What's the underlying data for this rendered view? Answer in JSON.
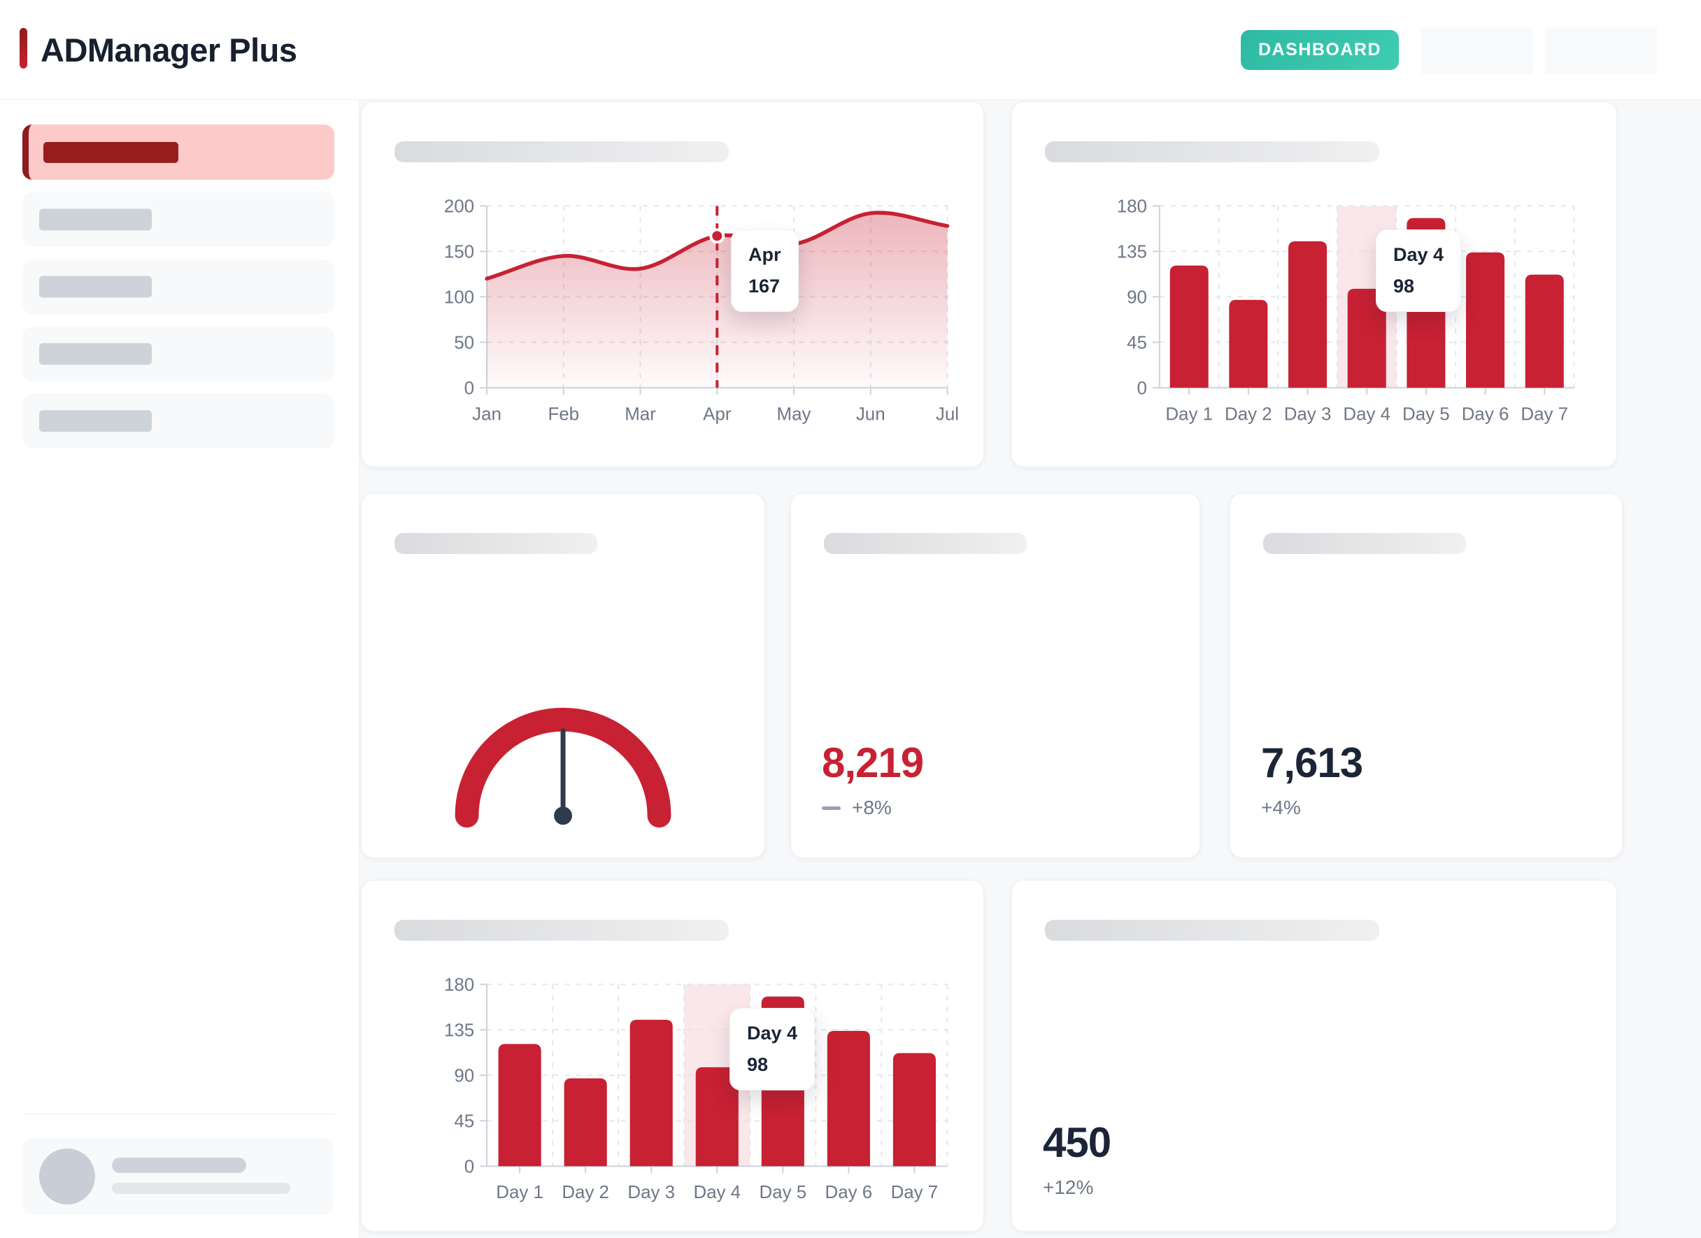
{
  "header": {
    "title": "ADManager Plus",
    "dashboard_label": "DASHBOARD"
  },
  "colors": {
    "accent_red": "#c72133",
    "dark_red": "#9a1d1d",
    "active_pink": "#fdcaca",
    "teal": "#35c4ab",
    "navy_text": "#1b2537",
    "muted_text": "#6e7787"
  },
  "kpis": [
    {
      "value": "8,219",
      "delta": "+8%",
      "emphasis": "red",
      "icon": "dash-icon"
    },
    {
      "value": "7,613",
      "delta": "+4%",
      "emphasis": "navy"
    },
    {
      "value": "450",
      "delta": "+12%",
      "emphasis": "navy"
    }
  ],
  "chart_data": [
    {
      "id": "monthly-trend",
      "type": "area",
      "x": [
        "Jan",
        "Feb",
        "Mar",
        "Apr",
        "May",
        "Jun",
        "Jul"
      ],
      "values": [
        120,
        145,
        131,
        167,
        158,
        192,
        178
      ],
      "ylim": [
        0,
        200
      ],
      "yticks": [
        0,
        50,
        100,
        150,
        200
      ],
      "grid": "dashed",
      "legend": "none",
      "line_color": "#c72133",
      "highlight": {
        "x": "Apr",
        "value": 167,
        "tooltip_label": "Apr",
        "tooltip_value": "167"
      }
    },
    {
      "id": "daily-bars-top",
      "type": "bar",
      "categories": [
        "Day 1",
        "Day 2",
        "Day 3",
        "Day 4",
        "Day 5",
        "Day 6",
        "Day 7"
      ],
      "values": [
        121,
        87,
        145,
        98,
        168,
        134,
        112
      ],
      "ylim": [
        0,
        180
      ],
      "yticks": [
        0,
        45,
        90,
        135,
        180
      ],
      "grid": "dashed",
      "legend": "none",
      "bar_color": "#c72133",
      "highlight_band": "#f9e7e9",
      "highlight": {
        "category": "Day 4",
        "value": 98,
        "tooltip_label": "Day 4",
        "tooltip_value": "98"
      }
    },
    {
      "id": "daily-bars-bottom",
      "type": "bar",
      "categories": [
        "Day 1",
        "Day 2",
        "Day 3",
        "Day 4",
        "Day 5",
        "Day 6",
        "Day 7"
      ],
      "values": [
        121,
        87,
        145,
        98,
        168,
        134,
        112
      ],
      "ylim": [
        0,
        180
      ],
      "yticks": [
        0,
        45,
        90,
        135,
        180
      ],
      "grid": "dashed",
      "legend": "none",
      "bar_color": "#c72133",
      "highlight_band": "#f9e7e9",
      "highlight": {
        "category": "Day 4",
        "value": 98,
        "tooltip_label": "Day 4",
        "tooltip_value": "98"
      }
    },
    {
      "id": "gauge",
      "type": "gauge",
      "arc_color": "#c72133",
      "needle_color": "#2e3a4d"
    }
  ]
}
